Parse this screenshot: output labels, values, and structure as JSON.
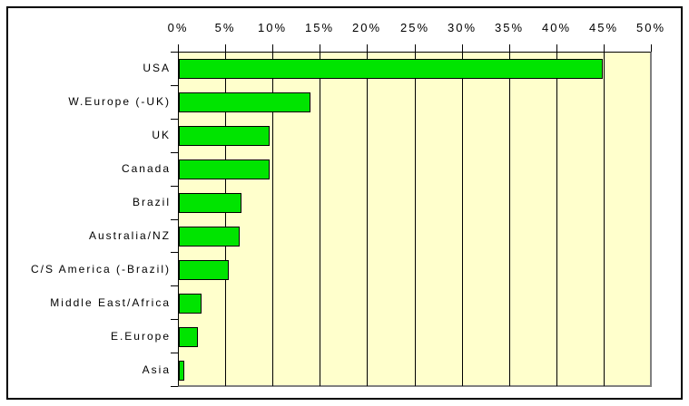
{
  "chart_data": {
    "type": "bar",
    "orientation": "horizontal",
    "title": "",
    "categories": [
      "USA",
      "W.Europe (-UK)",
      "UK",
      "Canada",
      "Brazil",
      "Australia/NZ",
      "C/S America (-Brazil)",
      "Middle East/Africa",
      "E.Europe",
      "Asia"
    ],
    "values": [
      44.8,
      13.9,
      9.6,
      9.6,
      6.6,
      6.4,
      5.3,
      2.4,
      2.0,
      0.6
    ],
    "value_unit": "%",
    "xlim": [
      0,
      50
    ],
    "x_tick_values": [
      0,
      5,
      10,
      15,
      20,
      25,
      30,
      35,
      40,
      45,
      50
    ],
    "x_tick_labels": [
      "0%",
      "5%",
      "10%",
      "15%",
      "20%",
      "25%",
      "30%",
      "35%",
      "40%",
      "45%",
      "50%"
    ],
    "x_axis_position": "top",
    "grid": true,
    "legend": "none",
    "colors": {
      "bar_fill": "#00E400",
      "bar_border": "#000000",
      "plot_background": "#FFFFCC",
      "gridline": "#000000",
      "axis_line": "#000000",
      "plot_shadow_border": "#808080",
      "text": "#000000",
      "outer_border": "#000000",
      "page_background": "#FFFFFF"
    }
  }
}
